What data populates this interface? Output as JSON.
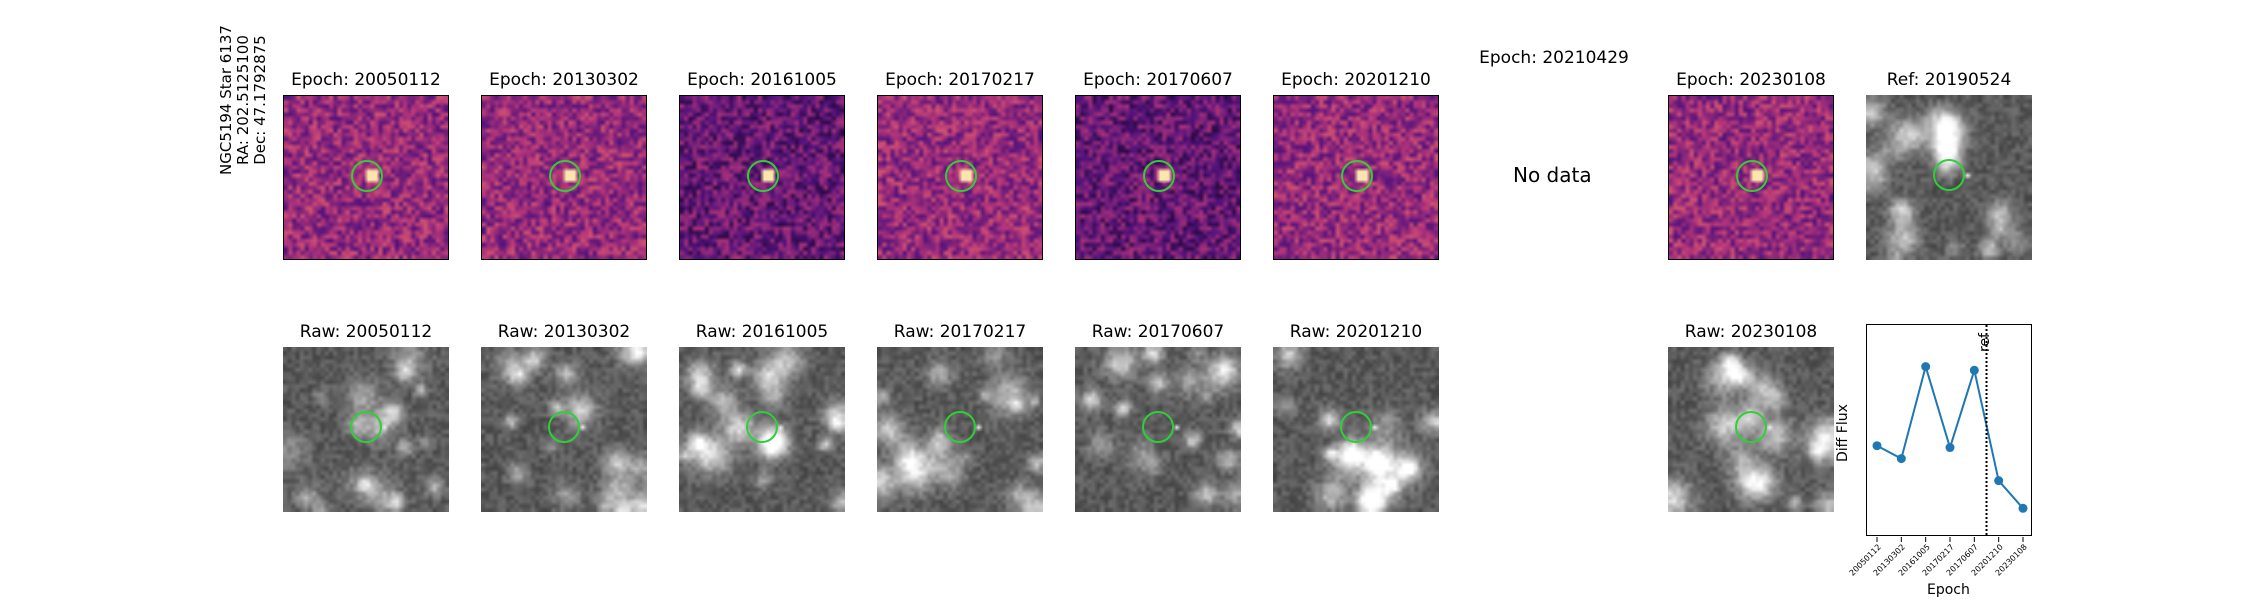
{
  "star_label": {
    "name": "NGC5194 Star 6137",
    "ra": "RA: 202.5125100",
    "dec": "Dec: 47.1792875"
  },
  "diff_titles": [
    "Epoch: 20050112",
    "Epoch: 20130302",
    "Epoch: 20161005",
    "Epoch: 20170217",
    "Epoch: 20170607",
    "Epoch: 20201210",
    "Epoch: 20210429",
    "Epoch: 20230108"
  ],
  "ref_title": "Ref: 20190524",
  "no_data_text": "No data",
  "raw_titles": [
    "Raw: 20050112",
    "Raw: 20130302",
    "Raw: 20161005",
    "Raw: 20170217",
    "Raw: 20170607",
    "Raw: 20201210",
    "Raw: 20230108"
  ],
  "colors": {
    "ring": "#2fcf3a",
    "line": "#1f77b4",
    "diff_colormap": "magma",
    "raw_colormap": "gray"
  },
  "chart_data": {
    "type": "line",
    "title": "",
    "xlabel": "Epoch",
    "ylabel": "Diff Flux",
    "categories": [
      "20050112",
      "20130302",
      "20161005",
      "20170217",
      "20170607",
      "20201210",
      "20230108"
    ],
    "series": [
      {
        "values": [
          0.42,
          0.35,
          0.85,
          0.41,
          0.83,
          0.23,
          0.08
        ]
      }
    ],
    "ylim": [
      0,
      1
    ],
    "y_ticks_shown": false,
    "reference_line": {
      "label": "ref",
      "position_between": [
        "20170607",
        "20201210"
      ],
      "style": "dotted"
    },
    "grid": false
  }
}
